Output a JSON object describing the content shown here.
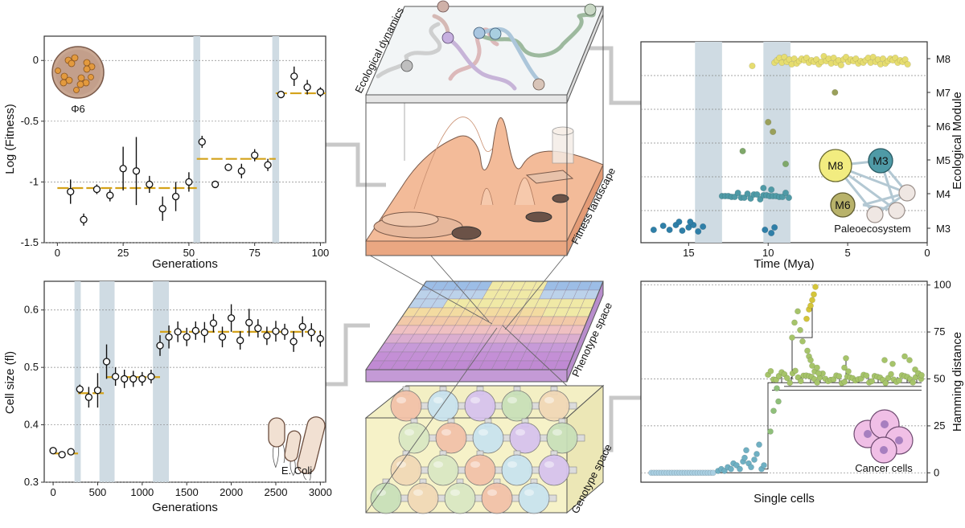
{
  "phage_panel": {
    "ylabel": "Log (Fitness)",
    "xlabel": "Generations",
    "icon_label": "Φ6",
    "xlim": [
      -5,
      102
    ],
    "ylim": [
      -1.5,
      0.2
    ],
    "yticks": [
      {
        "v": 0,
        "t": "0"
      },
      {
        "v": -0.5,
        "t": "-0.5"
      },
      {
        "v": -1,
        "t": "-1"
      },
      {
        "v": -1.5,
        "t": "-1.5"
      }
    ],
    "xticks": [
      0,
      25,
      50,
      75,
      100
    ],
    "bands": [
      53,
      83
    ],
    "levels": [
      {
        "x0": 0,
        "x1": 53,
        "y": -1.05
      },
      {
        "x0": 53,
        "x1": 83,
        "y": -0.81
      },
      {
        "x0": 83,
        "x1": 102,
        "y": -0.27
      }
    ],
    "points": [
      [
        5,
        -1.08,
        0.1
      ],
      [
        10,
        -1.31,
        0.05
      ],
      [
        15,
        -1.06,
        0.04
      ],
      [
        20,
        -1.11,
        0.05
      ],
      [
        25,
        -0.89,
        0.18
      ],
      [
        30,
        -0.91,
        0.28
      ],
      [
        35,
        -1.02,
        0.07
      ],
      [
        40,
        -1.22,
        0.1
      ],
      [
        45,
        -1.12,
        0.12
      ],
      [
        50,
        -1.0,
        0.08
      ],
      [
        55,
        -0.67,
        0.05
      ],
      [
        60,
        -1.02,
        0.03
      ],
      [
        65,
        -0.88,
        0.03
      ],
      [
        70,
        -0.91,
        0.06
      ],
      [
        75,
        -0.78,
        0.05
      ],
      [
        80,
        -0.86,
        0.05
      ],
      [
        85,
        -0.28,
        0.03
      ],
      [
        90,
        -0.13,
        0.08
      ],
      [
        95,
        -0.22,
        0.06
      ],
      [
        100,
        -0.26,
        0.04
      ]
    ]
  },
  "ecoli_panel": {
    "ylabel": "Cell size (fl)",
    "xlabel": "Generations",
    "icon_label": "E. Coli",
    "xlim": [
      -100,
      3060
    ],
    "ylim": [
      0.3,
      0.65
    ],
    "yticks": [
      {
        "v": 0.3,
        "t": "0.3"
      },
      {
        "v": 0.4,
        "t": "0.4"
      },
      {
        "v": 0.5,
        "t": "0.5"
      },
      {
        "v": 0.6,
        "t": "0.6"
      }
    ],
    "xticks": [
      0,
      500,
      1000,
      1500,
      2000,
      2500,
      3000
    ],
    "bands": [
      [
        240,
        310
      ],
      [
        520,
        690
      ],
      [
        1120,
        1300
      ]
    ],
    "levels": [
      {
        "x0": 0,
        "x1": 280,
        "y": 0.35
      },
      {
        "x0": 280,
        "x1": 600,
        "y": 0.455
      },
      {
        "x0": 600,
        "x1": 1200,
        "y": 0.483
      },
      {
        "x0": 1200,
        "x1": 3000,
        "y": 0.562
      }
    ],
    "points": [
      [
        0,
        0.355,
        0.006
      ],
      [
        100,
        0.348,
        0.006
      ],
      [
        200,
        0.353,
        0.006
      ],
      [
        300,
        0.462,
        0.008
      ],
      [
        400,
        0.448,
        0.018
      ],
      [
        500,
        0.46,
        0.03
      ],
      [
        600,
        0.51,
        0.03
      ],
      [
        700,
        0.484,
        0.016
      ],
      [
        800,
        0.48,
        0.016
      ],
      [
        900,
        0.48,
        0.014
      ],
      [
        1000,
        0.48,
        0.012
      ],
      [
        1100,
        0.484,
        0.012
      ],
      [
        1200,
        0.538,
        0.018
      ],
      [
        1300,
        0.553,
        0.02
      ],
      [
        1400,
        0.562,
        0.018
      ],
      [
        1500,
        0.553,
        0.016
      ],
      [
        1600,
        0.564,
        0.016
      ],
      [
        1700,
        0.561,
        0.018
      ],
      [
        1800,
        0.577,
        0.016
      ],
      [
        1900,
        0.553,
        0.018
      ],
      [
        2000,
        0.586,
        0.024
      ],
      [
        2100,
        0.547,
        0.016
      ],
      [
        2200,
        0.578,
        0.024
      ],
      [
        2300,
        0.568,
        0.016
      ],
      [
        2400,
        0.555,
        0.016
      ],
      [
        2500,
        0.563,
        0.018
      ],
      [
        2600,
        0.562,
        0.014
      ],
      [
        2700,
        0.545,
        0.018
      ],
      [
        2800,
        0.571,
        0.018
      ],
      [
        2900,
        0.561,
        0.016
      ],
      [
        3000,
        0.55,
        0.014
      ]
    ]
  },
  "paleo_panel": {
    "xlabel": "Time (Mya)",
    "ylabel": "Ecological Module",
    "xlim": [
      18,
      0
    ],
    "xticks": [
      15,
      10,
      5,
      0
    ],
    "modules": [
      "M3",
      "M4",
      "M5",
      "M6",
      "M7",
      "M8"
    ],
    "bands": [
      [
        14.6,
        12.9
      ],
      [
        10.3,
        8.6
      ]
    ],
    "network_label": "Paleoecosystem",
    "network_nodes": [
      "M8",
      "M3",
      "M6"
    ],
    "colors": {
      "M8": "#e3d86a",
      "M4": "#4aa0ad",
      "M3": "#2f7fa8",
      "M7": "#a0a85a",
      "M6": "#9aa55a",
      "M5": "#7da865"
    }
  },
  "cancer_panel": {
    "xlabel": "Single cells",
    "ylabel": "Hamming distance",
    "ylim": [
      -5,
      102
    ],
    "yticks": [
      0,
      25,
      50,
      75,
      100
    ],
    "icon_label": "Cancer cells"
  },
  "center": {
    "labels": {
      "ecological": "Ecological dynamics",
      "fitness": "Fitness landscape",
      "phenotype": "Phenotype space",
      "genotype": "Genotype space"
    }
  },
  "colors": {
    "band": "#cfdbe3",
    "level": "#d4a21a",
    "landscape": "#f1b795",
    "pheno_top": "#9fb9e4",
    "pheno_side": "#c9a0db",
    "connector": "#c8c8c8"
  }
}
